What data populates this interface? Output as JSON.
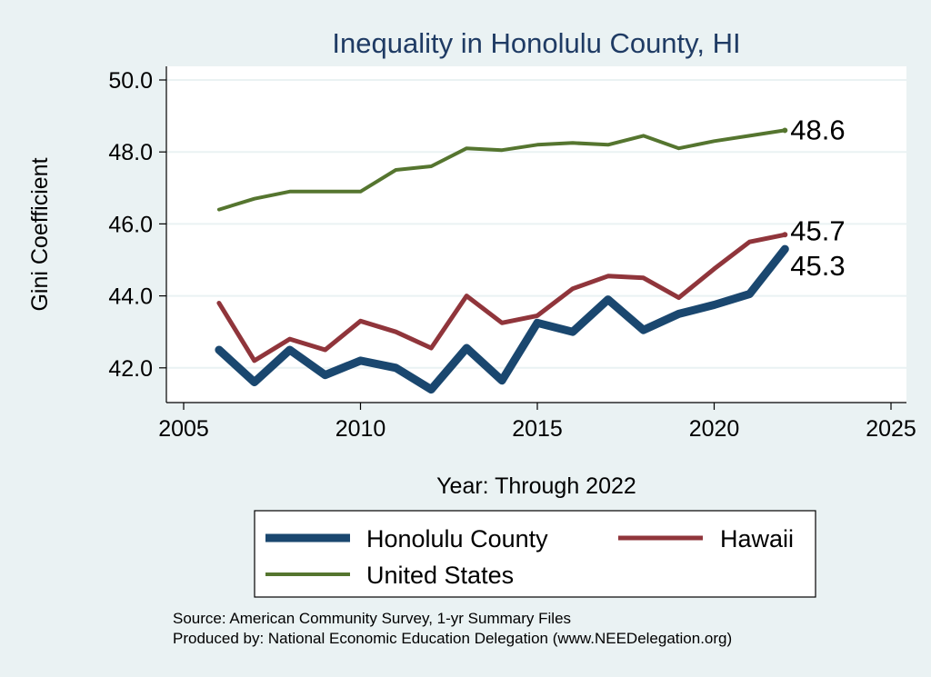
{
  "chart_data": {
    "type": "line",
    "title": "Inequality in Honolulu County, HI",
    "xlabel": "Year: Through 2022",
    "ylabel": "Gini Coefficient",
    "xlim": [
      2005,
      2025
    ],
    "ylim": [
      41.0,
      50.0
    ],
    "xticks": [
      "2005",
      "2010",
      "2015",
      "2020",
      "2025"
    ],
    "yticks": [
      "42.0",
      "44.0",
      "46.0",
      "48.0",
      "50.0"
    ],
    "grid": true,
    "legend_position": "bottom",
    "x": [
      2006,
      2007,
      2008,
      2009,
      2010,
      2011,
      2012,
      2013,
      2014,
      2015,
      2016,
      2017,
      2018,
      2019,
      2020,
      2021,
      2022
    ],
    "series": [
      {
        "name": "Honolulu County",
        "color": "#1a476f",
        "values": [
          42.5,
          41.6,
          42.5,
          41.8,
          42.2,
          42.0,
          41.4,
          42.55,
          41.65,
          43.25,
          43.0,
          43.9,
          43.05,
          43.5,
          43.75,
          44.05,
          45.3
        ],
        "end_label": "45.3"
      },
      {
        "name": "Hawaii",
        "color": "#90353b",
        "values": [
          43.8,
          42.2,
          42.8,
          42.5,
          43.3,
          43.0,
          42.55,
          44.0,
          43.25,
          43.45,
          44.2,
          44.55,
          44.5,
          43.95,
          44.75,
          45.5,
          45.7
        ],
        "end_label": "45.7"
      },
      {
        "name": "United States",
        "color": "#55752f",
        "values": [
          46.4,
          46.7,
          46.9,
          46.9,
          46.9,
          47.5,
          47.6,
          48.1,
          48.05,
          48.2,
          48.25,
          48.2,
          48.45,
          48.1,
          48.3,
          48.45,
          48.6
        ],
        "end_label": "48.6"
      }
    ]
  },
  "notes": {
    "source": "Source: American Community Survey, 1-yr Summary Files",
    "producer": "Produced by: National Economic Education Delegation (www.NEEDelegation.org)"
  }
}
